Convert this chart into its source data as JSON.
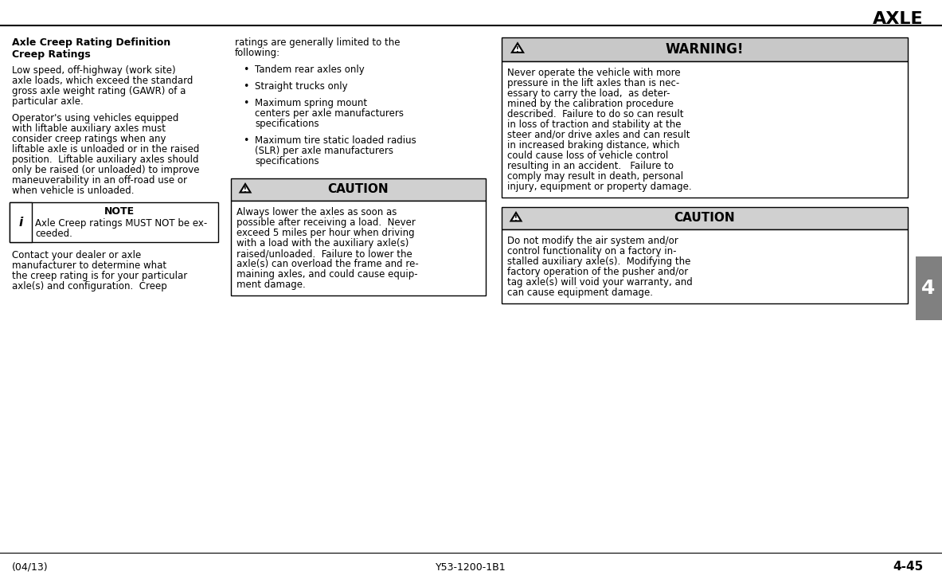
{
  "title": "AXLE",
  "bg_color": "#ffffff",
  "tab_color": "#808080",
  "tab_text": "4",
  "tab_text_color": "#ffffff",
  "header_line_color": "#000000",
  "footer_left": "(04/13)",
  "footer_center": "Y53-1200-1B1",
  "footer_right": "4-45",
  "col1_heading1": "Axle Creep Rating Definition",
  "col1_heading2": "Creep Ratings",
  "col1_para1": "Low speed, off-highway (work site)\naxle loads, which exceed the standard\ngross axle weight rating (GAWR) of a\nparticular axle.",
  "col1_para2": "Operator's using vehicles equipped\nwith liftable auxiliary axles must\nconsider creep ratings when any\nliftable axle is unloaded or in the raised\nposition.  Liftable auxiliary axles should\nonly be raised (or unloaded) to improve\nmaneuverability in an off-road use or\nwhen vehicle is unloaded.",
  "note_box_text1": "NOTE",
  "note_box_text2": "Axle Creep ratings MUST NOT be ex-\nceeded.",
  "col1_para3": "Contact your dealer or axle\nmanufacturer to determine what\nthe creep rating is for your particular\naxle(s) and configuration.  Creep",
  "col2_para1": "ratings are generally limited to the\nfollowing:",
  "bullet1": "Tandem rear axles only",
  "bullet2": "Straight trucks only",
  "bullet3": "Maximum spring mount\ncenters per axle manufacturers\nspecifications",
  "bullet4": "Maximum tire static loaded radius\n(SLR) per axle manufacturers\nspecifications",
  "caution1_title": "CAUTION",
  "caution1_text": "Always lower the axles as soon as\npossible after receiving a load.  Never\nexceed 5 miles per hour when driving\nwith a load with the auxiliary axle(s)\nraised/unloaded.  Failure to lower the\naxle(s) can overload the frame and re-\nmaining axles, and could cause equip-\nment damage.",
  "warning_title": "WARNING!",
  "warning_text": "Never operate the vehicle with more\npressure in the lift axles than is nec-\nessary to carry the load,  as deter-\nmined by the calibration procedure\ndescribed.  Failure to do so can result\nin loss of traction and stability at the\nsteer and/or drive axles and can result\nin increased braking distance, which\ncould cause loss of vehicle control\nresulting in an accident.   Failure to\ncomply may result in death, personal\ninjury, equipment or property damage.",
  "caution2_title": "CAUTION",
  "caution2_text": "Do not modify the air system and/or\ncontrol functionality on a factory in-\nstalled auxiliary axle(s).  Modifying the\nfactory operation of the pusher and/or\ntag axle(s) will void your warranty, and\ncan cause equipment damage.",
  "box_border_color": "#000000",
  "note_bg": "#ffffff",
  "caution_header_bg": "#d0d0d0",
  "warning_header_bg": "#c8c8c8",
  "warning_box_bg": "#ffffff",
  "caution_box_bg": "#ffffff"
}
